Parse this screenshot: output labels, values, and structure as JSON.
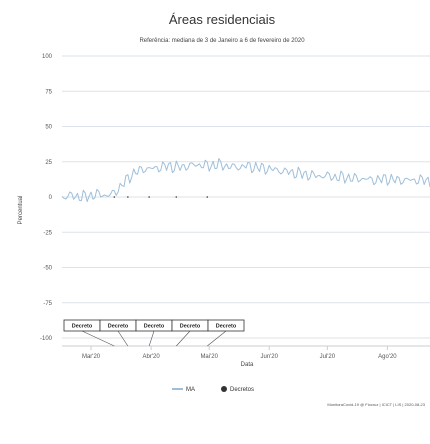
{
  "chart_data": {
    "type": "line",
    "title": "Áreas residenciais",
    "subtitle": "Referência: mediana de 3 de Janeiro a 6 de fevereiro de 2020",
    "xlabel": "Data",
    "ylabel": "Percentual",
    "ylim": [
      -100,
      100
    ],
    "yticks": [
      100,
      75,
      50,
      25,
      0,
      -25,
      -50,
      -75,
      -100
    ],
    "xlim": [
      "2020-02-15",
      "2020-08-23"
    ],
    "xticks": [
      {
        "date": "2020-03-01",
        "label": "Mar'20"
      },
      {
        "date": "2020-04-01",
        "label": "Abr'20"
      },
      {
        "date": "2020-05-01",
        "label": "Mai'20"
      },
      {
        "date": "2020-06-01",
        "label": "Jun'20"
      },
      {
        "date": "2020-07-01",
        "label": "Jul'20"
      },
      {
        "date": "2020-08-01",
        "label": "Ago'20"
      }
    ],
    "grid": true,
    "legend_position": "bottom",
    "series": [
      {
        "name": "MA",
        "color": "#9fbfd9",
        "x": [
          "2020-02-15",
          "2020-02-20",
          "2020-02-25",
          "2020-03-01",
          "2020-03-05",
          "2020-03-10",
          "2020-03-13",
          "2020-03-16",
          "2020-03-18",
          "2020-03-20",
          "2020-03-22",
          "2020-03-25",
          "2020-03-28",
          "2020-04-01",
          "2020-04-05",
          "2020-04-10",
          "2020-04-15",
          "2020-04-20",
          "2020-04-25",
          "2020-05-01",
          "2020-05-05",
          "2020-05-10",
          "2020-05-15",
          "2020-05-20",
          "2020-05-25",
          "2020-06-01",
          "2020-06-05",
          "2020-06-10",
          "2020-06-15",
          "2020-06-20",
          "2020-06-25",
          "2020-07-01",
          "2020-07-05",
          "2020-07-10",
          "2020-07-15",
          "2020-07-20",
          "2020-07-25",
          "2020-08-01",
          "2020-08-05",
          "2020-08-10",
          "2020-08-15",
          "2020-08-20",
          "2020-08-23"
        ],
        "y": [
          0,
          1,
          0,
          1,
          2,
          1,
          3,
          7,
          10,
          13,
          16,
          18,
          20,
          20,
          21,
          22,
          21,
          22,
          23,
          22,
          23,
          22,
          21,
          22,
          21,
          20,
          19,
          18,
          17,
          16,
          15,
          15,
          14,
          14,
          13,
          13,
          12,
          13,
          12,
          12,
          12,
          12,
          11
        ]
      }
    ],
    "decrees": {
      "name": "Decretos",
      "color": "#333333",
      "label": "Decreto",
      "dates": [
        "2020-03-13",
        "2020-03-20",
        "2020-03-31",
        "2020-04-14",
        "2020-04-30"
      ]
    },
    "source": "MonitoraCovid-19 @ Fiocruz | ICICT | LIS | 2020-08-23"
  }
}
